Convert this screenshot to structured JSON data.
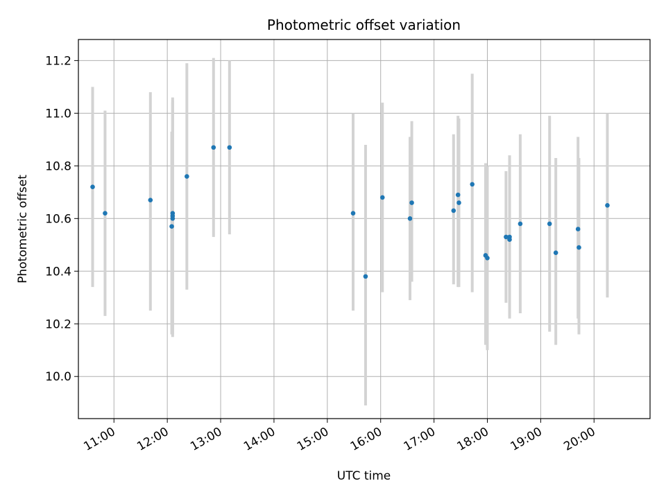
{
  "chart_data": {
    "type": "scatter",
    "title": "Photometric offset variation",
    "xlabel": "UTC time",
    "ylabel": "Photometric offset",
    "x_axis_kind": "time",
    "xlim": [
      "10:20",
      "21:03"
    ],
    "ylim": [
      9.84,
      11.28
    ],
    "x_ticks": [
      "11:00",
      "12:00",
      "13:00",
      "14:00",
      "15:00",
      "16:00",
      "17:00",
      "18:00",
      "19:00",
      "20:00"
    ],
    "y_ticks": [
      10.0,
      10.2,
      10.4,
      10.6,
      10.8,
      11.0,
      11.2
    ],
    "grid": true,
    "point_color": "#1f77b4",
    "errorbar_color": "#d3d3d3",
    "points": [
      {
        "x": "10:36",
        "y": 10.72,
        "ylo": 10.34,
        "yhi": 11.1
      },
      {
        "x": "10:50",
        "y": 10.62,
        "ylo": 10.23,
        "yhi": 11.01
      },
      {
        "x": "11:41",
        "y": 10.67,
        "ylo": 10.25,
        "yhi": 11.08
      },
      {
        "x": "12:05",
        "y": 10.57,
        "ylo": 10.16,
        "yhi": 10.93
      },
      {
        "x": "12:06",
        "y": 10.62,
        "ylo": 10.17,
        "yhi": 11.06
      },
      {
        "x": "12:06",
        "y": 10.6,
        "ylo": 10.16,
        "yhi": 11.05
      },
      {
        "x": "12:06",
        "y": 10.61,
        "ylo": 10.15,
        "yhi": 11.04
      },
      {
        "x": "12:22",
        "y": 10.76,
        "ylo": 10.33,
        "yhi": 11.19
      },
      {
        "x": "12:52",
        "y": 10.87,
        "ylo": 10.53,
        "yhi": 11.21
      },
      {
        "x": "13:10",
        "y": 10.87,
        "ylo": 10.54,
        "yhi": 11.2
      },
      {
        "x": "15:29",
        "y": 10.62,
        "ylo": 10.25,
        "yhi": 11.0
      },
      {
        "x": "15:43",
        "y": 10.38,
        "ylo": 9.89,
        "yhi": 10.88
      },
      {
        "x": "16:02",
        "y": 10.68,
        "ylo": 10.32,
        "yhi": 11.04
      },
      {
        "x": "16:33",
        "y": 10.6,
        "ylo": 10.29,
        "yhi": 10.91
      },
      {
        "x": "16:35",
        "y": 10.66,
        "ylo": 10.36,
        "yhi": 10.97
      },
      {
        "x": "17:22",
        "y": 10.63,
        "ylo": 10.35,
        "yhi": 10.92
      },
      {
        "x": "17:27",
        "y": 10.69,
        "ylo": 10.34,
        "yhi": 10.99
      },
      {
        "x": "17:28",
        "y": 10.66,
        "ylo": 10.34,
        "yhi": 10.98
      },
      {
        "x": "17:43",
        "y": 10.73,
        "ylo": 10.32,
        "yhi": 11.15
      },
      {
        "x": "17:58",
        "y": 10.46,
        "ylo": 10.12,
        "yhi": 10.81
      },
      {
        "x": "18:00",
        "y": 10.45,
        "ylo": 10.1,
        "yhi": 10.8
      },
      {
        "x": "18:21",
        "y": 10.53,
        "ylo": 10.28,
        "yhi": 10.78
      },
      {
        "x": "18:25",
        "y": 10.53,
        "ylo": 10.22,
        "yhi": 10.84
      },
      {
        "x": "18:25",
        "y": 10.52,
        "ylo": 10.23,
        "yhi": 10.83
      },
      {
        "x": "18:37",
        "y": 10.58,
        "ylo": 10.24,
        "yhi": 10.92
      },
      {
        "x": "19:10",
        "y": 10.58,
        "ylo": 10.17,
        "yhi": 10.99
      },
      {
        "x": "19:17",
        "y": 10.47,
        "ylo": 10.12,
        "yhi": 10.83
      },
      {
        "x": "19:42",
        "y": 10.56,
        "ylo": 10.22,
        "yhi": 10.91
      },
      {
        "x": "19:43",
        "y": 10.49,
        "ylo": 10.16,
        "yhi": 10.83
      },
      {
        "x": "20:15",
        "y": 10.65,
        "ylo": 10.3,
        "yhi": 11.0
      }
    ]
  }
}
